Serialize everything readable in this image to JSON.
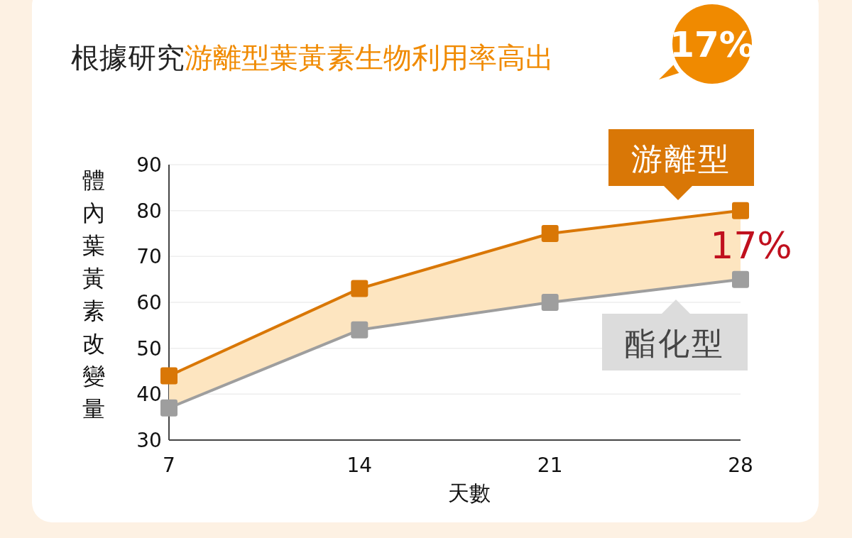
{
  "chart_data": {
    "type": "line",
    "title": "根據研究游離型葉黃素生物利用率高出",
    "xlabel": "天數",
    "ylabel": "體內葉黃素改變量",
    "x": [
      7,
      14,
      21,
      28
    ],
    "xlim": [
      7,
      28
    ],
    "xticks": [
      7,
      14,
      21,
      28
    ],
    "ylim": [
      30,
      90
    ],
    "yticks": [
      30,
      40,
      50,
      60,
      70,
      80,
      90
    ],
    "grid": "y",
    "marker": "square",
    "line_style": "solid",
    "series": [
      {
        "name": "游離型",
        "color": "#d97706",
        "values": [
          44,
          63,
          75,
          80
        ],
        "lower": [
          37,
          54,
          60,
          65
        ],
        "upper": [
          44,
          63,
          75,
          80
        ]
      },
      {
        "name": "酯化型",
        "color": "#9e9e9e",
        "values": [
          37,
          54,
          60,
          65
        ]
      }
    ],
    "annotations": [
      "17%",
      "17%"
    ]
  }
}
